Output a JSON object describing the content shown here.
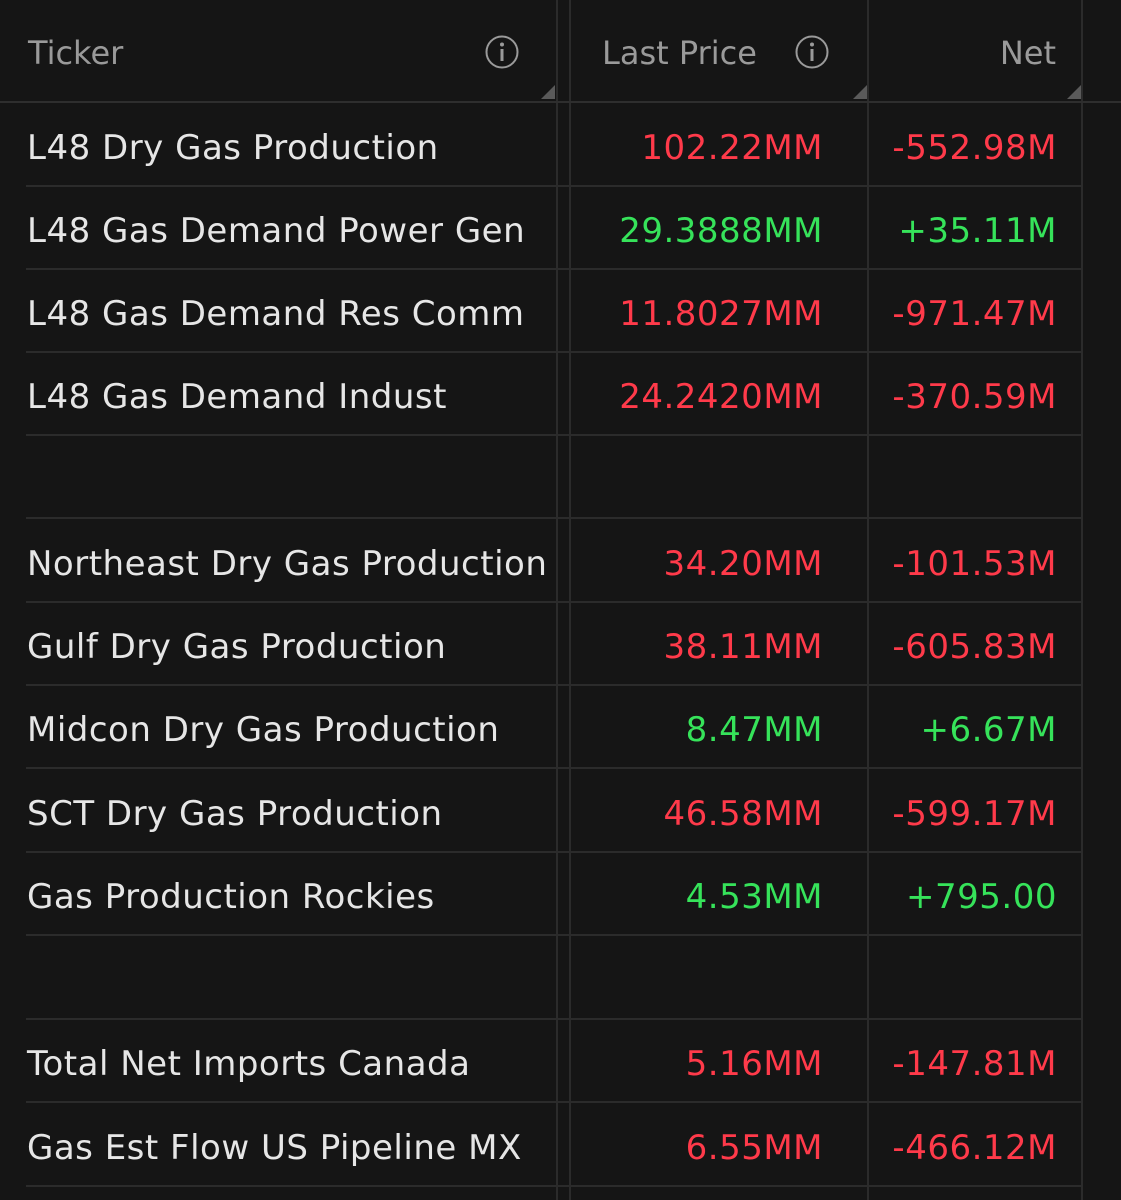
{
  "columns": {
    "ticker": "Ticker",
    "last_price": "Last Price",
    "net": "Net"
  },
  "icons": {
    "info": "info-circle-icon",
    "resize": "column-resize-handle-icon"
  },
  "colors": {
    "negative": "#ff3a4a",
    "positive": "#36e35a",
    "text": "#e6e6e6",
    "header_text": "#9a9a9a"
  },
  "rows": [
    {
      "ticker": "L48 Dry Gas Production",
      "price": "102.22MM",
      "net": "-552.98M",
      "direction": "neg"
    },
    {
      "ticker": "L48 Gas Demand Power Gen",
      "price": "29.3888MM",
      "net": "+35.11M",
      "direction": "pos"
    },
    {
      "ticker": "L48 Gas Demand Res Comm",
      "price": "11.8027MM",
      "net": "-971.47M",
      "direction": "neg"
    },
    {
      "ticker": "L48 Gas Demand Indust",
      "price": "24.2420MM",
      "net": "-370.59M",
      "direction": "neg"
    },
    {
      "ticker": "",
      "price": "",
      "net": "",
      "direction": ""
    },
    {
      "ticker": "Northeast Dry Gas Production",
      "price": "34.20MM",
      "net": "-101.53M",
      "direction": "neg"
    },
    {
      "ticker": "Gulf Dry Gas Production",
      "price": "38.11MM",
      "net": "-605.83M",
      "direction": "neg"
    },
    {
      "ticker": "Midcon Dry Gas Production",
      "price": "8.47MM",
      "net": "+6.67M",
      "direction": "pos"
    },
    {
      "ticker": "SCT Dry Gas Production",
      "price": "46.58MM",
      "net": "-599.17M",
      "direction": "neg"
    },
    {
      "ticker": "Gas Production Rockies",
      "price": "4.53MM",
      "net": "+795.00",
      "direction": "pos"
    },
    {
      "ticker": "",
      "price": "",
      "net": "",
      "direction": ""
    },
    {
      "ticker": "Total Net Imports Canada",
      "price": "5.16MM",
      "net": "-147.81M",
      "direction": "neg"
    },
    {
      "ticker": "Gas Est Flow US Pipeline MX",
      "price": "6.55MM",
      "net": "-466.12M",
      "direction": "neg"
    }
  ]
}
